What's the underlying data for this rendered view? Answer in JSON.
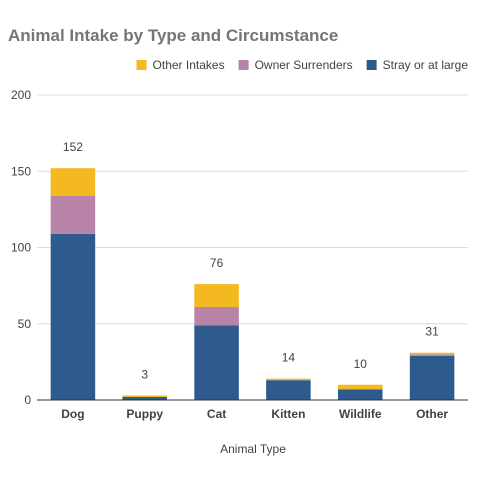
{
  "chart_data": {
    "type": "bar",
    "stacked": true,
    "title": "Animal Intake by Type and Circumstance",
    "xlabel": "Animal Type",
    "ylabel": "",
    "categories": [
      "Dog",
      "Puppy",
      "Cat",
      "Kitten",
      "Wildlife",
      "Other"
    ],
    "series": [
      {
        "name": "Stray or at large",
        "color": "#2e5b8e",
        "values": [
          109,
          2,
          49,
          13,
          7,
          29
        ]
      },
      {
        "name": "Owner Surrenders",
        "color": "#b784a7",
        "values": [
          25,
          0,
          12,
          0,
          0,
          1
        ]
      },
      {
        "name": "Other Intakes",
        "color": "#f4b921",
        "values": [
          18,
          1,
          15,
          1,
          3,
          1
        ]
      }
    ],
    "totals": [
      152,
      3,
      76,
      14,
      10,
      31
    ],
    "ylim": [
      0,
      200
    ],
    "yticks": [
      0,
      50,
      100,
      150,
      200
    ],
    "grid": true,
    "legend_position": "top-right",
    "legend_order": [
      "Other Intakes",
      "Owner Surrenders",
      "Stray or at large"
    ]
  }
}
